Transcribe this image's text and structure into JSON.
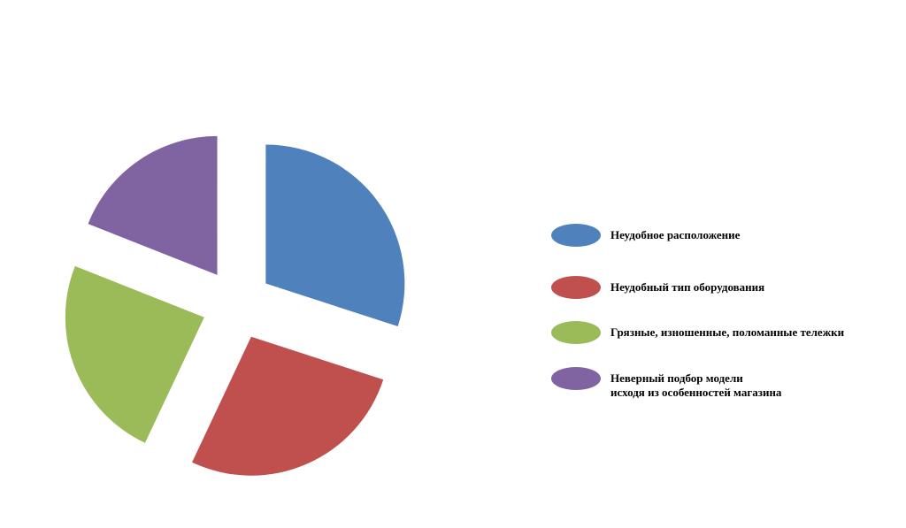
{
  "chart_data": {
    "type": "pie",
    "categories": [
      "Неудобное расположение",
      "Неудобный тип оборудования",
      "Грязные, изношенные, поломанные тележки",
      "Неверный подбор модели\nисходя из особенностей магазина"
    ],
    "values": [
      30,
      27,
      24,
      19
    ],
    "colors": [
      "#4f81bd",
      "#c0504d",
      "#9bbb59",
      "#8064a2"
    ],
    "legend": "right"
  }
}
